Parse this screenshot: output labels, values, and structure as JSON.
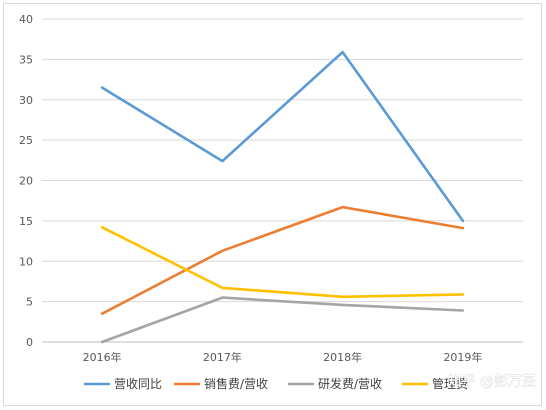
{
  "chart_data": {
    "type": "line",
    "categories": [
      "2016年",
      "2017年",
      "2018年",
      "2019年"
    ],
    "series": [
      {
        "name": "营收同比",
        "values": [
          31.5,
          22.4,
          35.9,
          15.0
        ],
        "color": "#5b9bd5"
      },
      {
        "name": "销售费/营收",
        "values": [
          3.5,
          11.3,
          16.7,
          14.1
        ],
        "color": "#ed7d31"
      },
      {
        "name": "研发费/营收",
        "values": [
          0.0,
          5.5,
          4.6,
          3.9
        ],
        "color": "#a5a5a5"
      },
      {
        "name": "管理费",
        "values": [
          14.2,
          6.7,
          5.6,
          5.9
        ],
        "color": "#ffc000"
      }
    ],
    "title": "",
    "xlabel": "",
    "ylabel": "",
    "ylim": [
      0,
      40
    ],
    "yticks": [
      0,
      5,
      10,
      15,
      20,
      25,
      30,
      35,
      40
    ],
    "grid": true,
    "legend_position": "bottom"
  },
  "watermark": {
    "text": "知乎 @彭万荃"
  }
}
